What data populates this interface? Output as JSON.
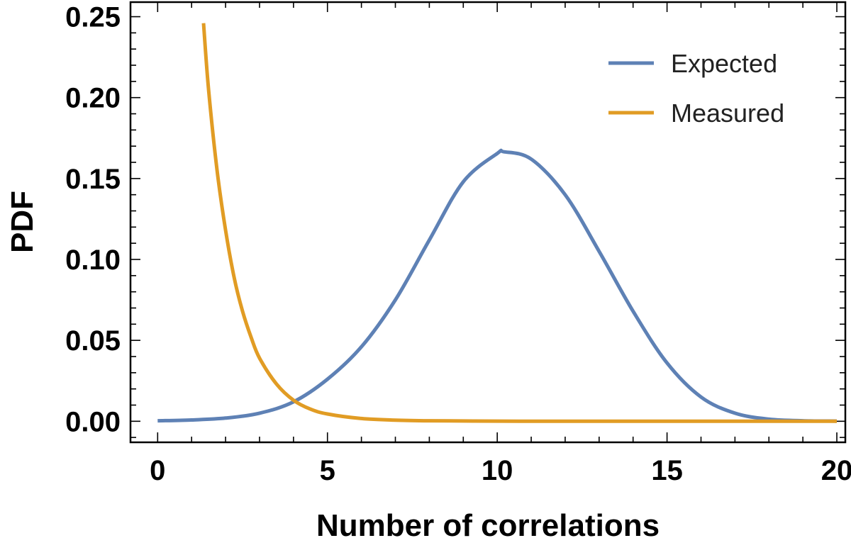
{
  "chart_data": {
    "type": "line",
    "title": "",
    "xlabel": "Number of correlations",
    "ylabel": "PDF",
    "xlim": [
      -0.8,
      20.25
    ],
    "ylim": [
      -0.013,
      0.259
    ],
    "xticks": [
      0,
      5,
      10,
      15,
      20
    ],
    "xtick_labels": [
      "0",
      "5",
      "10",
      "15",
      "20"
    ],
    "yticks": [
      0.0,
      0.05,
      0.1,
      0.15,
      0.2,
      0.25
    ],
    "ytick_labels": [
      "0.00",
      "0.05",
      "0.10",
      "0.15",
      "0.20",
      "0.25"
    ],
    "grid": false,
    "legend_position": "top-right",
    "series": [
      {
        "name": "Expected",
        "color": "#5E81B5",
        "x": [
          0,
          1,
          2,
          3,
          4,
          5,
          6,
          7,
          8,
          9,
          10,
          10.2,
          11,
          12,
          13,
          14,
          15,
          16,
          17,
          18,
          19,
          20
        ],
        "y": [
          0.0003,
          0.0008,
          0.002,
          0.005,
          0.012,
          0.026,
          0.046,
          0.075,
          0.112,
          0.148,
          0.1655,
          0.1665,
          0.162,
          0.14,
          0.105,
          0.068,
          0.036,
          0.015,
          0.005,
          0.0013,
          0.0003,
          0.0001
        ]
      },
      {
        "name": "Measured",
        "color": "#E19C24",
        "x": [
          1.35,
          1.5,
          1.75,
          2.0,
          2.25,
          2.5,
          2.75,
          3.0,
          3.5,
          4.0,
          4.5,
          5.0,
          6.0,
          7.0,
          8.0,
          10.0,
          12.0,
          15.0,
          20.0
        ],
        "y": [
          0.246,
          0.205,
          0.155,
          0.118,
          0.089,
          0.068,
          0.052,
          0.039,
          0.023,
          0.013,
          0.0075,
          0.0045,
          0.0017,
          0.0007,
          0.0003,
          0.0001,
          0.0,
          0.0,
          0.0
        ]
      }
    ]
  }
}
